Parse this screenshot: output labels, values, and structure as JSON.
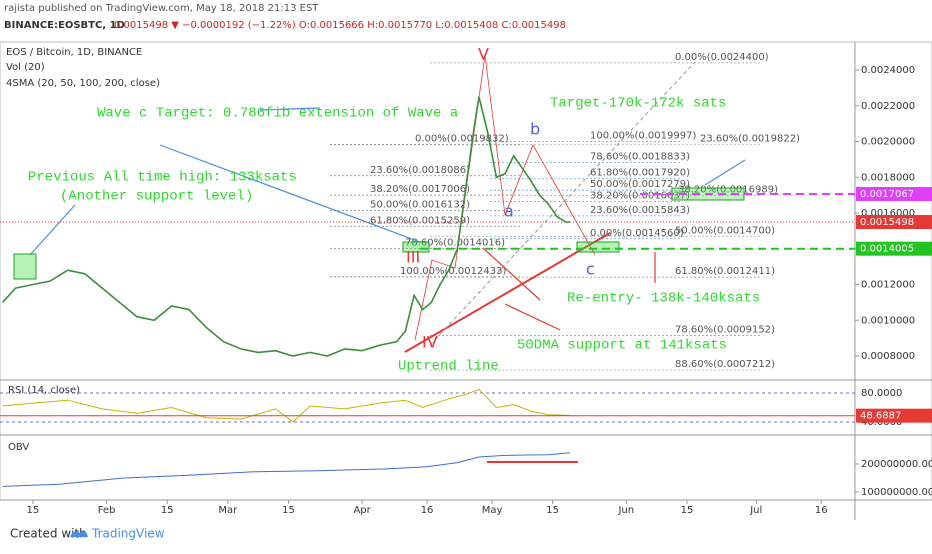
{
  "header": {
    "publisher": "rajista published on TradingView.com, May 18, 2018 21:13 EST",
    "symbol": "BINANCE:EOSBTC, 1D",
    "quote": "0.0015498 ▼ −0.0000192 (−1.22%) O:0.0015666 H:0.0015770 L:0.0015408 C:0.0015498"
  },
  "chart_data": {
    "type": "line",
    "title": "EOS / Bitcoin, 1D, BINANCE",
    "indicators": [
      "Vol (20)",
      "4SMA (20, 50, 100, 200, close)"
    ],
    "color": "#3a8f3a",
    "x": [
      7,
      10,
      14,
      18,
      22,
      26,
      30,
      34,
      38,
      42,
      46,
      50,
      54,
      58,
      62,
      66,
      70,
      74,
      78,
      82,
      86,
      90,
      94,
      98,
      100,
      102,
      104,
      106,
      108,
      110,
      112,
      114,
      116,
      117,
      119,
      121,
      123,
      125,
      127,
      129,
      131,
      133,
      135,
      137,
      138
    ],
    "values": [
      0.0011,
      0.00118,
      0.0012,
      0.00122,
      0.00128,
      0.00126,
      0.00118,
      0.0011,
      0.00102,
      0.001,
      0.00108,
      0.00106,
      0.00096,
      0.00088,
      0.00084,
      0.00082,
      0.00083,
      0.0008,
      0.00082,
      0.0008,
      0.00084,
      0.00083,
      0.00086,
      0.00088,
      0.00094,
      0.00114,
      0.00106,
      0.0011,
      0.0012,
      0.00128,
      0.0014,
      0.00175,
      0.0021,
      0.00225,
      0.00205,
      0.0018,
      0.00182,
      0.00192,
      0.00185,
      0.00178,
      0.0017,
      0.00165,
      0.00158,
      0.00155,
      0.00155
    ],
    "xlim": [
      6.4,
      203.8
    ],
    "ylim": [
      0.000677,
      0.002557
    ],
    "xticks": [
      {
        "value": 14,
        "label": "15"
      },
      {
        "value": 31,
        "label": "Feb"
      },
      {
        "value": 45,
        "label": "15"
      },
      {
        "value": 59,
        "label": "Mar"
      },
      {
        "value": 73,
        "label": "15"
      },
      {
        "value": 90,
        "label": "Apr"
      },
      {
        "value": 105,
        "label": "16"
      },
      {
        "value": 120,
        "label": "May"
      },
      {
        "value": 134,
        "label": "15"
      },
      {
        "value": 151,
        "label": "Jun"
      },
      {
        "value": 165,
        "label": "15"
      },
      {
        "value": 181,
        "label": "Jul"
      },
      {
        "value": 196,
        "label": "16"
      }
    ],
    "yticks": [
      {
        "value": 0.0024,
        "label": "0.0024000"
      },
      {
        "value": 0.0022,
        "label": "0.0022000"
      },
      {
        "value": 0.002,
        "label": "0.0020000"
      },
      {
        "value": 0.0018,
        "label": "0.0018000"
      },
      {
        "value": 0.0016,
        "label": "0.0016000"
      },
      {
        "value": 0.0014,
        "label": "0.0014000"
      },
      {
        "value": 0.0012,
        "label": "0.0012000"
      },
      {
        "value": 0.001,
        "label": "0.0010000"
      },
      {
        "value": 0.0008,
        "label": "0.0008000"
      }
    ],
    "price_markers": [
      {
        "value": 0.0017067,
        "label": "0.0017067",
        "color": "#e040fb"
      },
      {
        "value": 0.0015498,
        "label": "0.0015498",
        "color": "#e53935"
      },
      {
        "value": 0.0014005,
        "label": "0.0014005",
        "color": "#22c322"
      }
    ],
    "fib_levels": [
      {
        "value": 0.0019832,
        "label": "0.00%(0.0019832)"
      },
      {
        "value": 0.0018086,
        "label": "23.60%(0.0018086)"
      },
      {
        "value": 0.0017006,
        "label": "38.20%(0.0017006)"
      },
      {
        "value": 0.0016132,
        "label": "50.00%(0.0016132)"
      },
      {
        "value": 0.0015259,
        "label": "61.80%(0.0015259)"
      },
      {
        "value": 0.0014016,
        "label": "78.60%(0.0014016)"
      },
      {
        "value": 0.0012433,
        "label": "100.00%(0.0012433)"
      },
      {
        "value": 0.0019997,
        "label": "100.00%(0.0019997)"
      },
      {
        "value": 0.0018833,
        "label": "78.60%(0.0018833)"
      },
      {
        "value": 0.001792,
        "label": "61.80%(0.0017920)"
      },
      {
        "value": 0.0017279,
        "label": "50.00%(0.0017279)"
      },
      {
        "value": 0.0016637,
        "label": "38.20%(0.0016637)"
      },
      {
        "value": 0.0015843,
        "label": "23.60%(0.0015843)"
      },
      {
        "value": 0.001456,
        "label": "0.00%(0.0014560)"
      },
      {
        "value": 0.00244,
        "label": "0.00%(0.0024400)"
      },
      {
        "value": 0.0019822,
        "label": "23.60%(0.0019822)"
      },
      {
        "value": 0.0016989,
        "label": "38.20%(0.0016989)"
      },
      {
        "value": 0.00147,
        "label": "50.00%(0.0014700)"
      },
      {
        "value": 0.0012411,
        "label": "61.80%(0.0012411)"
      },
      {
        "value": 0.0009152,
        "label": "78.60%(0.0009152)"
      },
      {
        "value": 0.0007212,
        "label": "88.60%(0.0007212)"
      }
    ],
    "annotations": [
      "Wave c Target: 0.786fib extension of Wave a",
      "Target-170k-172k sats",
      "Previous All time high: 133ksats",
      "(Another support level)",
      "Re-entry- 138k-140ksats",
      "50DMA support at 141ksats",
      "Uptrend line"
    ],
    "wave_labels": [
      "V",
      "IV",
      "III",
      "a",
      "b",
      "c"
    ],
    "rsi": {
      "title": "RSI (14, close)",
      "ylim": [
        26.2,
        97.9
      ],
      "yticks": [
        {
          "value": 80,
          "label": "80.0000"
        },
        {
          "value": 40,
          "label": "40.0000"
        }
      ],
      "last": {
        "value": 48.6887,
        "label": "48.6887"
      },
      "color": "#c9b300",
      "x": [
        7,
        14,
        22,
        30,
        38,
        46,
        54,
        62,
        70,
        74,
        78,
        86,
        94,
        100,
        104,
        110,
        114,
        117,
        121,
        125,
        129,
        133,
        138
      ],
      "values": [
        62,
        66,
        70,
        58,
        52,
        60,
        46,
        44,
        58,
        40,
        62,
        58,
        66,
        70,
        60,
        72,
        78,
        85,
        60,
        64,
        55,
        50,
        49
      ]
    },
    "obv": {
      "title": "OBV",
      "ylim": [
        71400000,
        296400000
      ],
      "yticks": [
        {
          "value": 200000000,
          "label": "200000000.0000"
        },
        {
          "value": 100000000,
          "label": "100000000.0000"
        }
      ],
      "color": "#3f6fd1",
      "x": [
        7,
        20,
        35,
        50,
        65,
        80,
        95,
        105,
        112,
        117,
        122,
        128,
        133,
        138
      ],
      "values": [
        120000000,
        128000000,
        150000000,
        160000000,
        172000000,
        176000000,
        182000000,
        190000000,
        205000000,
        225000000,
        230000000,
        232000000,
        233000000,
        240000000
      ]
    }
  },
  "footer": {
    "created": "Created with",
    "brand": "TradingView"
  }
}
